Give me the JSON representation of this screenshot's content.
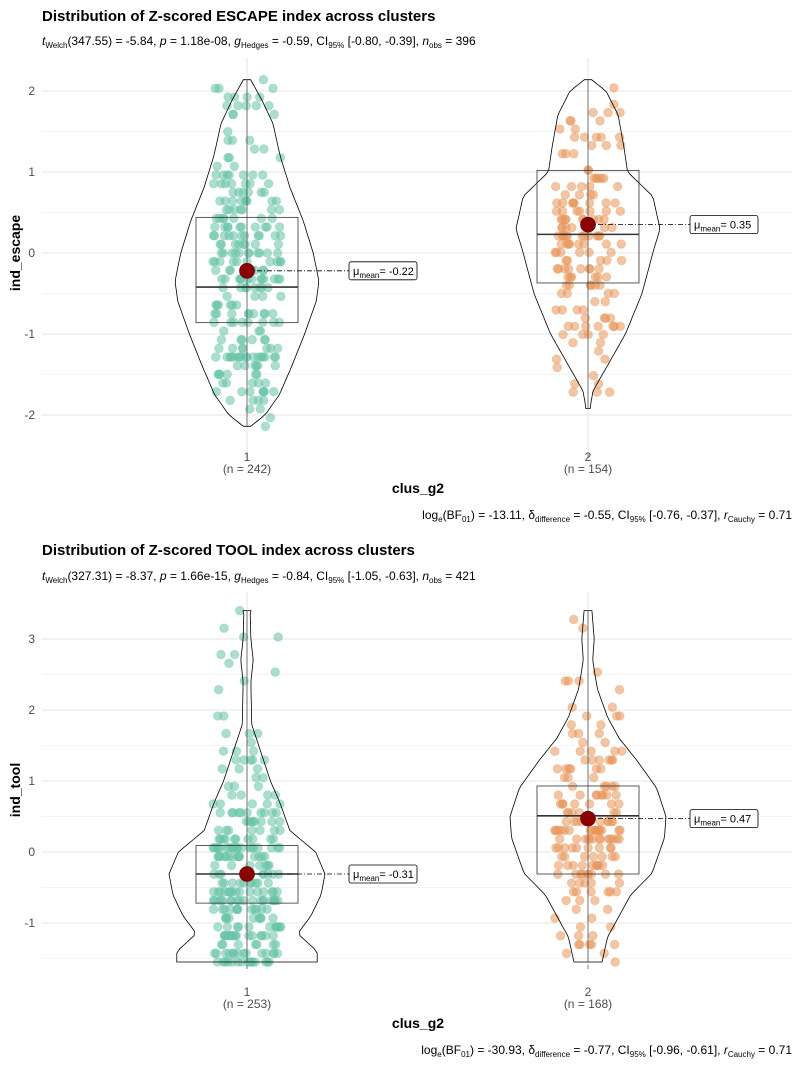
{
  "chart_data": [
    {
      "type": "violin",
      "title": "Distribution of Z-scored ESCAPE index across clusters",
      "subtitle": {
        "welch": "(347.55) = -5.84,",
        "p": "= 1.18e-08,",
        "hedges": "= -0.59, CI",
        "ci": "[-0.80, -0.39],",
        "nobs": "= 396"
      },
      "xlabel": "clus_g2",
      "ylabel": "ind_escape",
      "ylim": [
        -2.2,
        2.2
      ],
      "yticks": [
        "-2",
        "-1",
        "0",
        "1",
        "2"
      ],
      "groups": [
        {
          "name": "1",
          "n_label": "(n = 242)",
          "mean": -0.22,
          "mean_label": "= -0.22",
          "median": -0.42,
          "q1": -0.86,
          "q3": 0.44,
          "min": -2.14,
          "max": 2.14,
          "color": "#66c2a5"
        },
        {
          "name": "2",
          "n_label": "(n = 154)",
          "mean": 0.35,
          "mean_label": "= 0.35",
          "median": 0.23,
          "q1": -0.37,
          "q3": 1.02,
          "min": -1.92,
          "max": 2.14,
          "color": "#e8965a"
        }
      ],
      "caption": {
        "bf": "(BF",
        "bf_val": ") = -13.11,",
        "delta_val": "= -0.55, CI",
        "ci_val": "[-0.76, -0.37],",
        "r_val": "= 0.71"
      }
    },
    {
      "type": "violin",
      "title": "Distribution of Z-scored TOOL index across clusters",
      "subtitle": {
        "welch": "(327.31) = -8.37,",
        "p": "= 1.66e-15,",
        "hedges": "= -0.84, CI",
        "ci": "[-1.05, -0.63],",
        "nobs": "= 421"
      },
      "xlabel": "clus_g2",
      "ylabel": "ind_tool",
      "ylim": [
        -1.62,
        3.48
      ],
      "yticks": [
        "-1",
        "0",
        "1",
        "2",
        "3"
      ],
      "groups": [
        {
          "name": "1",
          "n_label": "(n = 253)",
          "mean": -0.31,
          "mean_label": "= -0.31",
          "median": -0.31,
          "q1": -0.72,
          "q3": 0.09,
          "min": -1.55,
          "max": 3.4,
          "color": "#66c2a5"
        },
        {
          "name": "2",
          "n_label": "(n = 168)",
          "mean": 0.47,
          "mean_label": "= 0.47",
          "median": 0.51,
          "q1": -0.31,
          "q3": 0.93,
          "min": -1.55,
          "max": 3.4,
          "color": "#e8965a"
        }
      ],
      "caption": {
        "bf": "(BF",
        "bf_val": ") = -30.93,",
        "delta_val": "= -0.77, CI",
        "ci_val": "[-0.96, -0.61],",
        "r_val": "= 0.71"
      }
    }
  ]
}
